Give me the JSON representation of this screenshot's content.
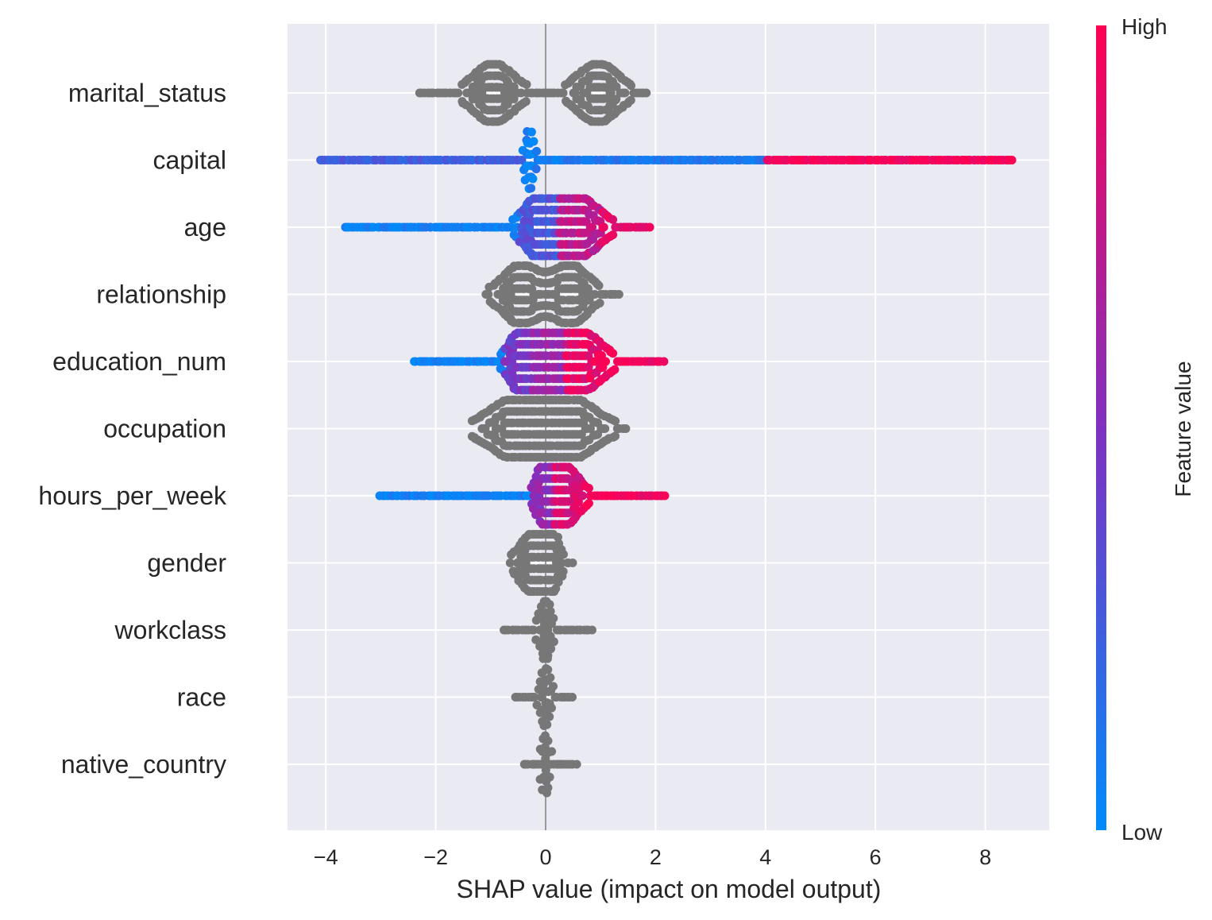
{
  "chart_data": {
    "type": "scatter",
    "subtype": "shap_beeswarm_summary",
    "title": "",
    "xlabel": "SHAP value (impact on model output)",
    "ylabel": "",
    "xlim": [
      -4.6,
      9.2
    ],
    "xticks": [
      -4,
      -2,
      0,
      2,
      4,
      6,
      8
    ],
    "xtick_labels": [
      "−4",
      "−2",
      "0",
      "2",
      "4",
      "6",
      "8"
    ],
    "grid": true,
    "background": "#eaeaf2",
    "gray_color": "#777777",
    "colorbar": {
      "title": "Feature value",
      "high_label": "High",
      "low_label": "Low",
      "low_color": "#008bfb",
      "mid_color": "#8030c0",
      "high_color": "#ff0052"
    },
    "features": [
      {
        "name": "marital_status",
        "colored": false,
        "min": -2.3,
        "max": 1.85,
        "modes": [
          {
            "x": -0.95,
            "w": 0.5
          },
          {
            "x": 0.95,
            "w": 0.5
          }
        ]
      },
      {
        "name": "capital",
        "colored": true,
        "min": -4.1,
        "max": 8.5,
        "modes": [
          {
            "x": -0.3,
            "w": 0.1,
            "v": 0.05
          }
        ],
        "segments": [
          {
            "from": -4.1,
            "to": -0.45,
            "v": 0.25
          },
          {
            "from": -0.2,
            "to": 3.95,
            "v": 0.1
          },
          {
            "from": 4.0,
            "to": 8.5,
            "v": 0.97
          }
        ]
      },
      {
        "name": "age",
        "colored": true,
        "min": -3.65,
        "max": 1.9,
        "modes": [
          {
            "x": -0.1,
            "w": 0.4,
            "v": 0.3
          },
          {
            "x": 0.6,
            "w": 0.5,
            "v": 0.75
          }
        ],
        "segments": [
          {
            "from": -3.65,
            "to": -0.5,
            "v": 0.05
          },
          {
            "from": 1.0,
            "to": 1.9,
            "v": 0.9
          }
        ]
      },
      {
        "name": "relationship",
        "colored": false,
        "min": -1.1,
        "max": 1.35,
        "modes": [
          {
            "x": -0.45,
            "w": 0.45
          },
          {
            "x": 0.45,
            "w": 0.45
          }
        ]
      },
      {
        "name": "education_num",
        "colored": true,
        "min": -2.4,
        "max": 2.15,
        "modes": [
          {
            "x": -0.45,
            "w": 0.3,
            "v": 0.45
          },
          {
            "x": 0.05,
            "w": 0.3,
            "v": 0.6
          },
          {
            "x": 0.65,
            "w": 0.5,
            "v": 0.9
          }
        ],
        "segments": [
          {
            "from": -2.4,
            "to": -0.75,
            "v": 0.05
          },
          {
            "from": 1.1,
            "to": 2.15,
            "v": 0.95
          }
        ]
      },
      {
        "name": "occupation",
        "colored": false,
        "min": -1.35,
        "max": 1.45,
        "modes": [
          {
            "x": -0.5,
            "w": 0.7
          },
          {
            "x": 0.4,
            "w": 0.7
          }
        ]
      },
      {
        "name": "hours_per_week",
        "colored": true,
        "min": -3.0,
        "max": 2.2,
        "modes": [
          {
            "x": 0.0,
            "w": 0.2,
            "v": 0.55
          },
          {
            "x": 0.35,
            "w": 0.35,
            "v": 0.85
          }
        ],
        "segments": [
          {
            "from": -3.0,
            "to": -0.3,
            "v": 0.05
          },
          {
            "from": 0.7,
            "to": 2.2,
            "v": 0.95
          }
        ]
      },
      {
        "name": "gender",
        "colored": false,
        "min": -0.65,
        "max": 0.5,
        "modes": [
          {
            "x": -0.25,
            "w": 0.3
          },
          {
            "x": 0.1,
            "w": 0.2
          }
        ]
      },
      {
        "name": "workclass",
        "colored": false,
        "min": -0.75,
        "max": 0.85,
        "modes": [
          {
            "x": 0.0,
            "w": 0.15
          }
        ]
      },
      {
        "name": "race",
        "colored": false,
        "min": -0.55,
        "max": 0.5,
        "modes": [
          {
            "x": 0.0,
            "w": 0.12
          }
        ]
      },
      {
        "name": "native_country",
        "colored": false,
        "min": -0.4,
        "max": 0.55,
        "modes": [
          {
            "x": 0.0,
            "w": 0.1
          }
        ]
      }
    ]
  }
}
